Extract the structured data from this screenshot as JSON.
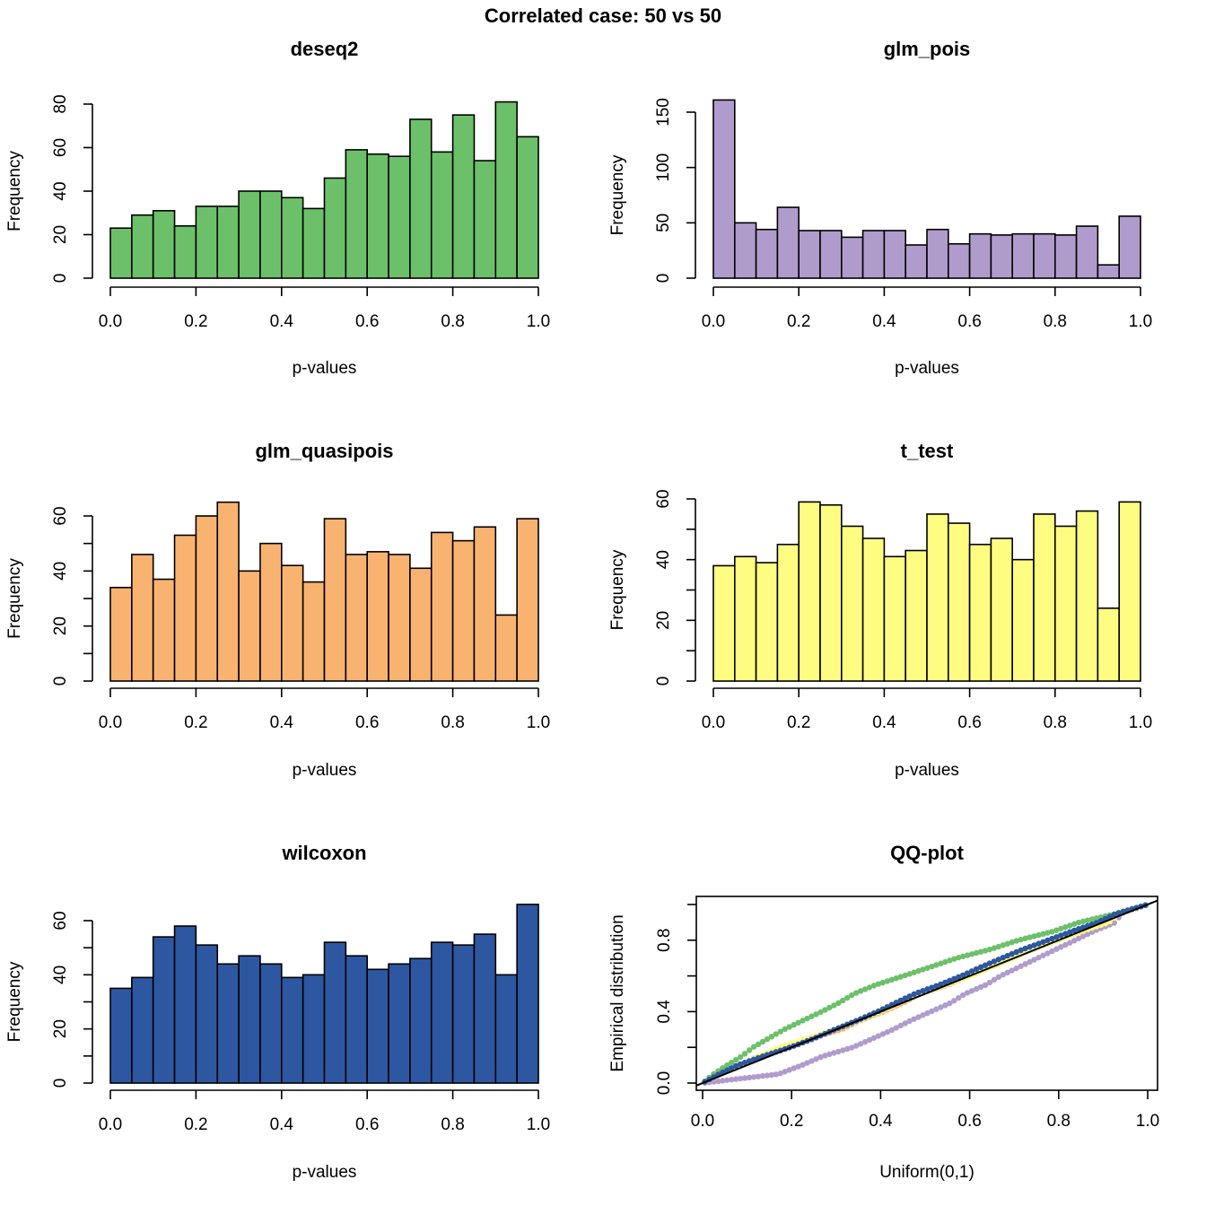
{
  "figure": {
    "suptitle": "Correlated case: 50 vs 50"
  },
  "chart_data": [
    {
      "type": "bar",
      "id": "deseq2",
      "title": "deseq2",
      "xlabel": "p-values",
      "ylabel": "Frequency",
      "color": "#6DC06A",
      "bin_edges_step": 0.05,
      "xlim": [
        0,
        1
      ],
      "xticks": [
        "0.0",
        "0.2",
        "0.4",
        "0.6",
        "0.8",
        "1.0"
      ],
      "ylim": [
        0,
        80
      ],
      "yticks": [
        0,
        20,
        40,
        60,
        80
      ],
      "yticklabels": [
        "0",
        "20",
        "40",
        "60",
        "80"
      ],
      "values": [
        23,
        29,
        31,
        24,
        33,
        33,
        40,
        40,
        37,
        32,
        46,
        59,
        57,
        56,
        73,
        58,
        75,
        54,
        81,
        65
      ]
    },
    {
      "type": "bar",
      "id": "glm_pois",
      "title": "glm_pois",
      "xlabel": "p-values",
      "ylabel": "Frequency",
      "color": "#B09CCC",
      "bin_edges_step": 0.05,
      "xlim": [
        0,
        1
      ],
      "xticks": [
        "0.0",
        "0.2",
        "0.4",
        "0.6",
        "0.8",
        "1.0"
      ],
      "ylim": [
        0,
        150
      ],
      "yticks": [
        0,
        50,
        100,
        150
      ],
      "yticklabels": [
        "0",
        "50",
        "100",
        "150"
      ],
      "values": [
        161,
        50,
        44,
        64,
        43,
        43,
        37,
        43,
        43,
        30,
        44,
        31,
        40,
        39,
        40,
        40,
        39,
        47,
        12,
        56
      ]
    },
    {
      "type": "bar",
      "id": "glm_quasipois",
      "title": "glm_quasipois",
      "xlabel": "p-values",
      "ylabel": "Frequency",
      "color": "#F9B371",
      "bin_edges_step": 0.05,
      "xlim": [
        0,
        1
      ],
      "xticks": [
        "0.0",
        "0.2",
        "0.4",
        "0.6",
        "0.8",
        "1.0"
      ],
      "ylim": [
        0,
        60
      ],
      "yticks": [
        0,
        10,
        20,
        30,
        40,
        50,
        60
      ],
      "yticklabels": [
        "0",
        "",
        "20",
        "",
        "40",
        "",
        "60"
      ],
      "values": [
        34,
        46,
        37,
        53,
        60,
        65,
        40,
        50,
        42,
        36,
        59,
        46,
        47,
        46,
        41,
        54,
        51,
        56,
        24,
        59
      ]
    },
    {
      "type": "bar",
      "id": "t_test",
      "title": "t_test",
      "xlabel": "p-values",
      "ylabel": "Frequency",
      "color": "#FFFC82",
      "bin_edges_step": 0.05,
      "xlim": [
        0,
        1
      ],
      "xticks": [
        "0.0",
        "0.2",
        "0.4",
        "0.6",
        "0.8",
        "1.0"
      ],
      "ylim": [
        0,
        60
      ],
      "yticks": [
        0,
        10,
        20,
        30,
        40,
        50,
        60
      ],
      "yticklabels": [
        "0",
        "",
        "20",
        "",
        "40",
        "",
        "60"
      ],
      "values": [
        38,
        41,
        39,
        45,
        59,
        58,
        51,
        47,
        41,
        43,
        55,
        52,
        45,
        47,
        40,
        55,
        51,
        56,
        24,
        59
      ]
    },
    {
      "type": "bar",
      "id": "wilcoxon",
      "title": "wilcoxon",
      "xlabel": "p-values",
      "ylabel": "Frequency",
      "color": "#2D57A0",
      "bin_edges_step": 0.05,
      "xlim": [
        0,
        1
      ],
      "xticks": [
        "0.0",
        "0.2",
        "0.4",
        "0.6",
        "0.8",
        "1.0"
      ],
      "ylim": [
        0,
        60
      ],
      "yticks": [
        0,
        10,
        20,
        30,
        40,
        50,
        60
      ],
      "yticklabels": [
        "0",
        "",
        "20",
        "",
        "40",
        "",
        "60"
      ],
      "values": [
        35,
        39,
        54,
        58,
        51,
        44,
        47,
        44,
        39,
        40,
        52,
        47,
        42,
        44,
        46,
        52,
        51,
        55,
        40,
        66
      ]
    },
    {
      "type": "scatter",
      "id": "qqplot",
      "title": "QQ-plot",
      "xlabel": "Uniform(0,1)",
      "ylabel": "Empirical distribution",
      "xlim": [
        0,
        1
      ],
      "ylim": [
        0,
        1
      ],
      "xticks": [
        "0.0",
        "0.2",
        "0.4",
        "0.6",
        "0.8",
        "1.0"
      ],
      "yticks": [
        0,
        0.2,
        0.4,
        0.6,
        0.8,
        1.0
      ],
      "yticklabels": [
        "0.0",
        "",
        "0.4",
        "",
        "0.8",
        ""
      ],
      "reference_line": {
        "intercept": 0,
        "slope": 1,
        "color": "#000000"
      },
      "series": [
        {
          "name": "glm_pois",
          "color": "#B09CCC",
          "source": "glm_pois"
        },
        {
          "name": "glm_quasipois",
          "color": "#F9B371",
          "source": "glm_quasipois"
        },
        {
          "name": "t_test",
          "color": "#FFFC82",
          "source": "t_test"
        },
        {
          "name": "deseq2",
          "color": "#6DC06A",
          "source": "deseq2"
        },
        {
          "name": "wilcoxon",
          "color": "#2D57A0",
          "source": "wilcoxon"
        }
      ],
      "points_per_series": 100
    }
  ]
}
